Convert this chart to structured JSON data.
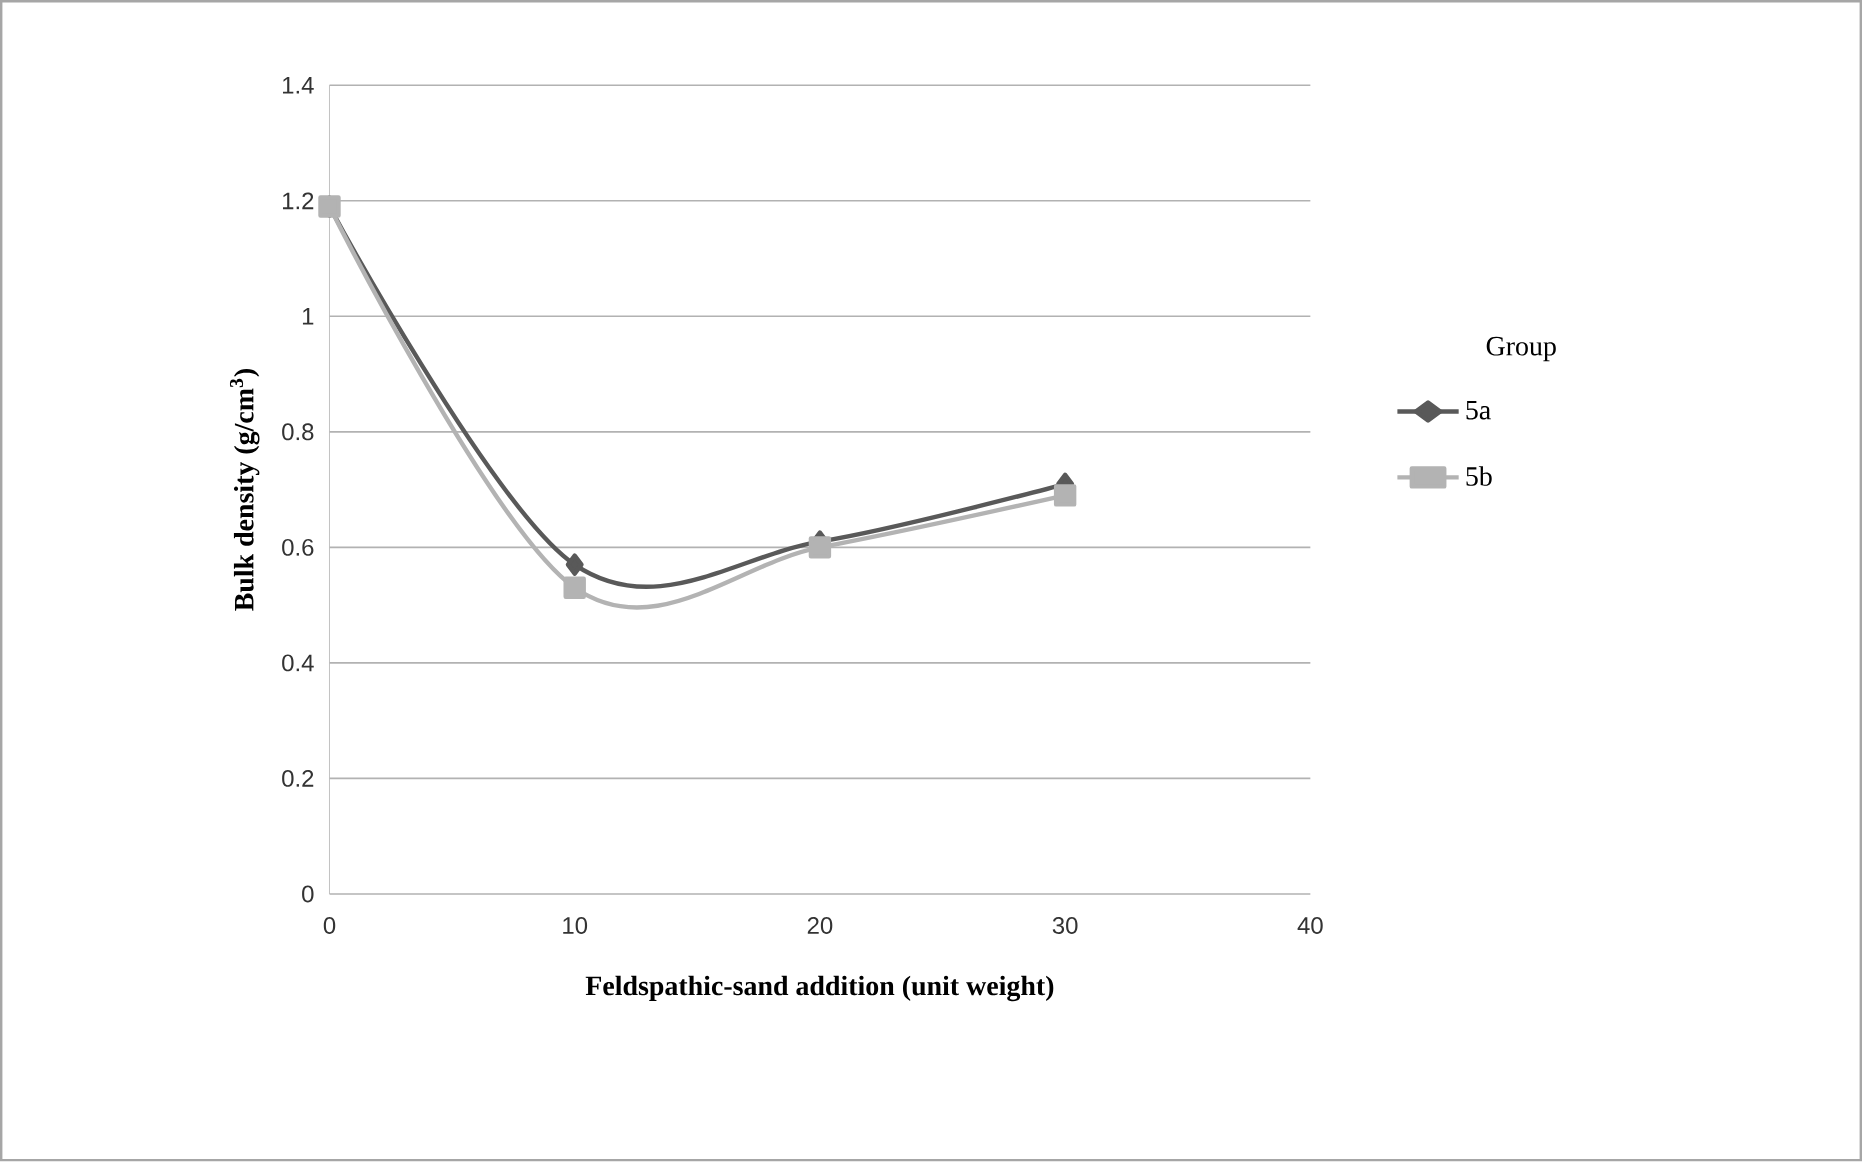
{
  "chart_data": {
    "type": "line",
    "xlabel": "Feldspathic-sand addition (unit weight)",
    "ylabel": "Bulk density (g/cm$^{3}$)",
    "legend_title": "Group",
    "legend": "right",
    "grid": "y",
    "x": [
      0,
      10,
      20,
      30
    ],
    "xlim": [
      0,
      40
    ],
    "xticks": [
      0,
      10,
      20,
      30,
      40
    ],
    "ylim": [
      0,
      1.4
    ],
    "yticks": [
      0,
      0.2,
      0.4,
      0.6,
      0.8,
      1,
      1.2,
      1.4
    ],
    "series": [
      {
        "name": "5a",
        "color": "#595959",
        "marker": "diamond",
        "values": [
          1.19,
          0.57,
          0.61,
          0.71
        ]
      },
      {
        "name": "5b",
        "color": "#b3b3b3",
        "marker": "square",
        "values": [
          1.19,
          0.53,
          0.6,
          0.69
        ]
      }
    ]
  }
}
